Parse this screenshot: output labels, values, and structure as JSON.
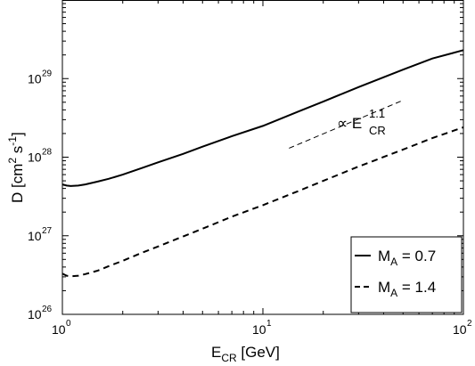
{
  "chart_data": {
    "type": "line",
    "xscale": "log",
    "yscale": "log",
    "xlim": [
      1,
      100
    ],
    "ylim": [
      1e+26,
      1e+30
    ],
    "grid": false,
    "legend_position": "bottom-right",
    "x_ticks": [
      {
        "value": 1,
        "base": "10",
        "exp": "0"
      },
      {
        "value": 10,
        "base": "10",
        "exp": "1"
      },
      {
        "value": 100,
        "base": "10",
        "exp": "2"
      }
    ],
    "y_ticks": [
      {
        "value": 1e+26,
        "base": "10",
        "exp": "26"
      },
      {
        "value": 1e+27,
        "base": "10",
        "exp": "27"
      },
      {
        "value": 1e+28,
        "base": "10",
        "exp": "28"
      },
      {
        "value": 1e+29,
        "base": "10",
        "exp": "29"
      }
    ],
    "xlabel": {
      "main": "E",
      "sub": "CR",
      "rest": " [GeV]"
    },
    "ylabel": {
      "pre": "D [cm",
      "sup1": "2",
      "mid": " s",
      "sup2": "-1",
      "post": "]"
    },
    "series": [
      {
        "name": "M_A = 0.7",
        "legend": {
          "main": "M",
          "sub": "A",
          "rest": " = 0.7"
        },
        "style": "solid",
        "color": "#000000",
        "x": [
          1.0,
          1.05,
          1.1,
          1.2,
          1.3,
          1.5,
          1.7,
          2.0,
          2.5,
          3.0,
          4.0,
          5.0,
          7.0,
          10.0,
          15.0,
          20.0,
          30.0,
          50.0,
          70.0,
          100.0
        ],
        "y": [
          4.5e+27,
          4.35e+27,
          4.3e+27,
          4.35e+27,
          4.5e+27,
          4.9e+27,
          5.3e+27,
          6e+27,
          7.3e+27,
          8.6e+27,
          1.1e+28,
          1.36e+28,
          1.85e+28,
          2.5e+28,
          3.8e+28,
          5.1e+28,
          7.8e+28,
          1.3e+29,
          1.8e+29,
          2.3e+29
        ]
      },
      {
        "name": "M_A = 1.4",
        "legend": {
          "main": "M",
          "sub": "A",
          "rest": " = 1.4"
        },
        "style": "dashed",
        "color": "#000000",
        "x": [
          1.0,
          1.05,
          1.1,
          1.2,
          1.3,
          1.5,
          1.7,
          2.0,
          2.5,
          3.0,
          4.0,
          5.0,
          7.0,
          10.0,
          15.0,
          20.0,
          30.0,
          50.0,
          70.0,
          100.0
        ],
        "y": [
          3.3e+26,
          3.1e+26,
          3.05e+26,
          3.1e+26,
          3.25e+26,
          3.6e+26,
          4.1e+26,
          4.8e+26,
          6.1e+26,
          7.3e+26,
          9.8e+26,
          1.23e+27,
          1.75e+27,
          2.45e+27,
          3.7e+27,
          5e+27,
          7.6e+27,
          1.25e+28,
          1.75e+28,
          2.4e+28
        ]
      }
    ],
    "annotations": [
      {
        "type": "reference_line",
        "style": "dashed",
        "x": [
          13.5,
          50.0
        ],
        "y": [
          1.3e+28,
          5.3e+28
        ],
        "label": {
          "prefix": "∝ E",
          "sup": "1.1",
          "sub": "CR"
        }
      }
    ]
  }
}
